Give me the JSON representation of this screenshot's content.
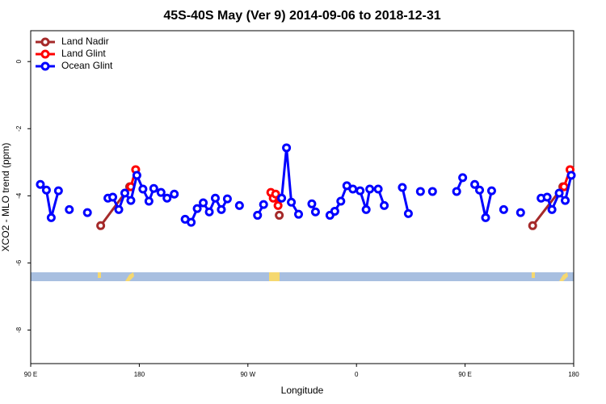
{
  "chart_data": {
    "type": "line",
    "title": "45S-40S May (Ver 9)   2014-09-06 to 2018-12-31",
    "x_label": "Longitude",
    "y_label": "XCO2 - MLO trend (ppm)",
    "xlim": [
      90,
      540
    ],
    "ylim": [
      0.92,
      -9.0
    ],
    "xticks": [
      {
        "value": 90,
        "label": "90 E"
      },
      180,
      {
        "value": 270,
        "label": "90 W"
      },
      {
        "value": 360,
        "label": "0"
      },
      {
        "value": 450,
        "label": "90 E"
      },
      {
        "value": 540,
        "label": "180"
      }
    ],
    "yticks": [
      0,
      -2,
      -4,
      -6,
      -8
    ],
    "legend": "top-left",
    "series": [
      {
        "name": "Land Nadir",
        "color": "#a52a2a",
        "x": [
          148,
          172,
          null,
          296,
          null,
          506,
          531
        ],
        "values": [
          -4.89,
          -3.73,
          null,
          -4.58,
          null,
          -4.89,
          -3.73
        ]
      },
      {
        "name": "Land Glint",
        "color": "#ff0000",
        "x": [
          173,
          177,
          null,
          289,
          291,
          293,
          295,
          null,
          532,
          537
        ],
        "values": [
          -3.73,
          -3.22,
          null,
          -3.9,
          -4.07,
          -3.95,
          -4.29,
          null,
          -3.73,
          -3.22
        ]
      },
      {
        "name": "Ocean Glint",
        "color": "#0000ff",
        "x": [
          98,
          103,
          107,
          113,
          null,
          122,
          null,
          137,
          null,
          154,
          158,
          163,
          168,
          173,
          178,
          183,
          188,
          192,
          198,
          203,
          209,
          null,
          218,
          223,
          228,
          233,
          238,
          243,
          248,
          253,
          null,
          263,
          null,
          278,
          283,
          null,
          298,
          302,
          306,
          312,
          null,
          323,
          326,
          null,
          338,
          342,
          347,
          352,
          357,
          363,
          368,
          371,
          378,
          383,
          null,
          398,
          403,
          null,
          413,
          null,
          423,
          null,
          443,
          448,
          null,
          458,
          462,
          467,
          472,
          null,
          482,
          null,
          496,
          null,
          513,
          518,
          522,
          528,
          533,
          538
        ],
        "values": [
          -3.66,
          -3.83,
          -4.65,
          -3.85,
          null,
          -4.41,
          null,
          -4.5,
          null,
          -4.07,
          -4.04,
          -4.41,
          -3.92,
          -4.14,
          -3.39,
          -3.8,
          -4.16,
          -3.78,
          -3.9,
          -4.07,
          -3.95,
          null,
          -4.7,
          -4.79,
          -4.38,
          -4.21,
          -4.48,
          -4.07,
          -4.41,
          -4.09,
          null,
          -4.29,
          null,
          -4.58,
          -4.26,
          null,
          -4.07,
          -2.57,
          -4.19,
          -4.55,
          null,
          -4.24,
          -4.48,
          null,
          -4.58,
          -4.46,
          -4.16,
          -3.7,
          -3.8,
          -3.85,
          -4.41,
          -3.8,
          -3.8,
          -4.29,
          null,
          -3.75,
          -4.53,
          null,
          -3.87,
          null,
          -3.87,
          null,
          -3.87,
          -3.46,
          null,
          -3.66,
          -3.83,
          -4.65,
          -3.85,
          null,
          -4.41,
          null,
          -4.5,
          null,
          -4.07,
          -4.04,
          -4.41,
          -3.92,
          -4.14,
          -3.39
        ]
      }
    ]
  }
}
